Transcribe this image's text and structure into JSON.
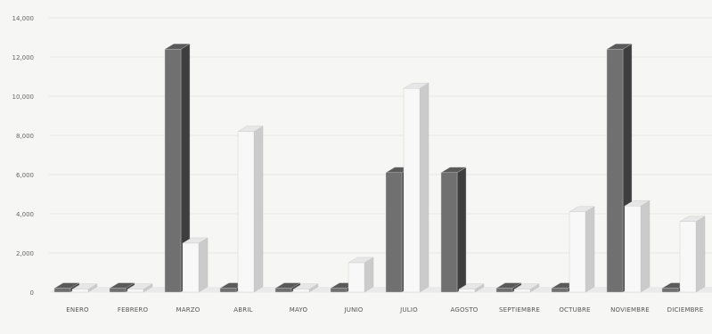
{
  "chart_data": {
    "type": "bar",
    "categories": [
      "ENERO",
      "FEBRERO",
      "MARZO",
      "ABRIL",
      "MAYO",
      "JUNIO",
      "JULIO",
      "AGOSTO",
      "SEPTIEMBRE",
      "OCTUBRE",
      "NOVIEMBRE",
      "DICIEMBRE"
    ],
    "series": [
      {
        "values": [
          200,
          200,
          12400,
          200,
          200,
          200,
          6100,
          6100,
          200,
          200,
          12400,
          200
        ],
        "color": "#707070"
      },
      {
        "values": [
          150,
          150,
          2500,
          8200,
          150,
          1500,
          10400,
          150,
          150,
          4100,
          4400,
          3600
        ],
        "color": "#f8f8f8"
      }
    ],
    "ylim": [
      0,
      14000
    ],
    "yticks": [
      "0",
      "2,000",
      "4,000",
      "6,000",
      "8,000",
      "10,000",
      "12,000",
      "14,000"
    ],
    "xlabel": "",
    "ylabel": "",
    "title": "",
    "grid": true,
    "legend": "none"
  }
}
